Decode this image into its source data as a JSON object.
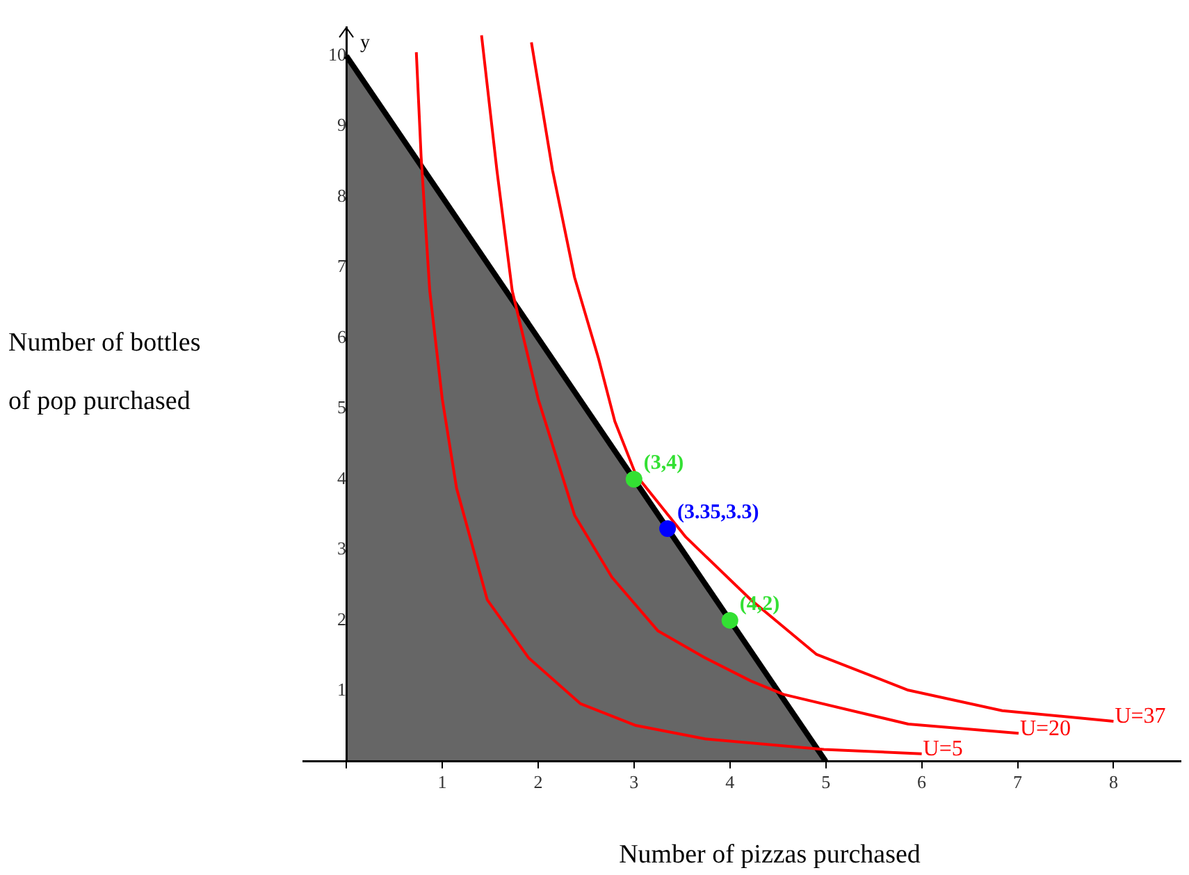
{
  "chart_data": {
    "type": "line",
    "xlabel": "Number of pizzas purchased",
    "ylabel": "Number of bottles of pop purchased",
    "annotations": [
      "y",
      {
        "text": "(3,4)",
        "x": 3,
        "y": 4
      },
      {
        "text": "(4,2)",
        "x": 4,
        "y": 2
      },
      {
        "text": "(3.35,3.3)",
        "x": 3.35,
        "y": 3.3
      }
    ],
    "xlim": [
      -0.45,
      8.7
    ],
    "ylim": [
      0,
      10.4
    ],
    "xticks": [
      {
        "value": 0,
        "label": null
      },
      1,
      2,
      3,
      4,
      5,
      6,
      7,
      8
    ],
    "yticks": [
      1,
      2,
      3,
      4,
      5,
      6,
      7,
      8,
      9,
      10
    ],
    "legend": false,
    "marker": "none",
    "series": [
      {
        "type": "area",
        "color": "#000000",
        "x": [
          0,
          5
        ],
        "values": [
          10,
          0
        ]
      },
      {
        "name": "U=5",
        "color": "#ff0000",
        "x": [
          0.73,
          0.78,
          0.87,
          1.0,
          1.15,
          1.47,
          1.9,
          2.44,
          3.02,
          3.74,
          4.98,
          6.0
        ],
        "values": [
          10.05,
          8.57,
          6.67,
          5.14,
          3.87,
          2.29,
          1.47,
          0.82,
          0.51,
          0.32,
          0.17,
          0.11
        ]
      },
      {
        "name": "U=20",
        "color": "#ff0000",
        "x": [
          1.41,
          1.57,
          1.73,
          2.0,
          2.38,
          2.77,
          3.25,
          3.74,
          4.22,
          4.56,
          5.86,
          7.01
        ],
        "values": [
          10.29,
          8.38,
          6.67,
          5.14,
          3.49,
          2.61,
          1.85,
          1.47,
          1.14,
          0.95,
          0.53,
          0.4
        ]
      },
      {
        "name": "U=37",
        "color": "#ff0000",
        "x": [
          1.93,
          2.15,
          2.38,
          2.63,
          2.8,
          3.02,
          3.54,
          4.22,
          4.9,
          5.86,
          6.84,
          8.0
        ],
        "values": [
          10.19,
          8.38,
          6.86,
          5.71,
          4.82,
          4.06,
          3.18,
          2.29,
          1.52,
          1.01,
          0.72,
          0.57
        ]
      },
      {
        "type": "scatter",
        "marker": "circle",
        "color": "#33e033",
        "x": [
          3,
          4
        ],
        "values": [
          4,
          2
        ]
      },
      {
        "type": "scatter",
        "marker": "circle",
        "color": "#0000ff",
        "x": [
          3.35
        ],
        "values": [
          3.3
        ]
      }
    ]
  }
}
